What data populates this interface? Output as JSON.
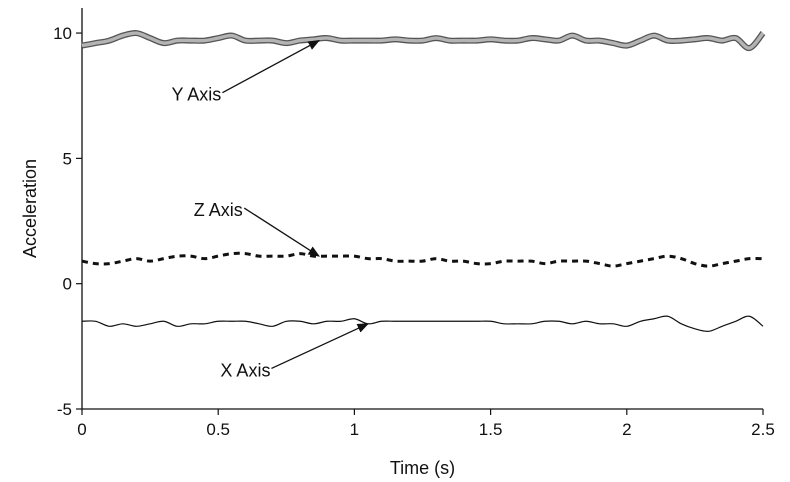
{
  "chart_data": {
    "type": "line",
    "title": "",
    "xlabel": "Time (s)",
    "ylabel": "Acceleration",
    "xlim": [
      0,
      2.5
    ],
    "ylim": [
      -5,
      11
    ],
    "xticks": [
      "0",
      "0.5",
      "1",
      "1.5",
      "2",
      "2.5"
    ],
    "xtick_values": [
      0,
      0.5,
      1,
      1.5,
      2,
      2.5
    ],
    "yticks": [
      "-5",
      "0",
      "5",
      "10"
    ],
    "ytick_values": [
      -5,
      0,
      5,
      10
    ],
    "grid": false,
    "legend": "none",
    "x": [
      0,
      0.05,
      0.1,
      0.15,
      0.2,
      0.25,
      0.3,
      0.35,
      0.4,
      0.45,
      0.5,
      0.55,
      0.6,
      0.65,
      0.7,
      0.75,
      0.8,
      0.85,
      0.9,
      0.95,
      1.0,
      1.05,
      1.1,
      1.15,
      1.2,
      1.25,
      1.3,
      1.35,
      1.4,
      1.45,
      1.5,
      1.55,
      1.6,
      1.65,
      1.7,
      1.75,
      1.8,
      1.85,
      1.9,
      1.95,
      2.0,
      2.05,
      2.1,
      2.15,
      2.2,
      2.25,
      2.3,
      2.35,
      2.4,
      2.45,
      2.5
    ],
    "series": [
      {
        "style": "thick-gray",
        "color": "#8a8a8a",
        "values": [
          9.5,
          9.6,
          9.7,
          9.9,
          10.0,
          9.8,
          9.6,
          9.7,
          9.7,
          9.7,
          9.8,
          9.9,
          9.7,
          9.7,
          9.7,
          9.6,
          9.7,
          9.75,
          9.8,
          9.7,
          9.7,
          9.7,
          9.7,
          9.75,
          9.7,
          9.7,
          9.8,
          9.7,
          9.7,
          9.7,
          9.75,
          9.7,
          9.7,
          9.8,
          9.75,
          9.7,
          9.9,
          9.7,
          9.7,
          9.6,
          9.5,
          9.7,
          9.9,
          9.7,
          9.7,
          9.75,
          9.8,
          9.7,
          9.8,
          9.4,
          10.0
        ]
      },
      {
        "style": "dashed",
        "color": "#111111",
        "values": [
          0.9,
          0.8,
          0.8,
          0.9,
          1.0,
          0.9,
          1.0,
          1.1,
          1.1,
          1.0,
          1.1,
          1.2,
          1.2,
          1.1,
          1.1,
          1.1,
          1.2,
          1.1,
          1.1,
          1.1,
          1.1,
          1.0,
          1.0,
          0.9,
          0.9,
          0.9,
          1.0,
          0.9,
          0.9,
          0.8,
          0.8,
          0.9,
          0.9,
          0.9,
          0.8,
          0.9,
          0.9,
          0.9,
          0.8,
          0.7,
          0.8,
          0.9,
          1.0,
          1.1,
          1.0,
          0.8,
          0.7,
          0.8,
          0.9,
          1.0,
          1.0
        ]
      },
      {
        "style": "thin-solid",
        "color": "#111111",
        "values": [
          -1.5,
          -1.5,
          -1.7,
          -1.6,
          -1.7,
          -1.6,
          -1.5,
          -1.7,
          -1.6,
          -1.6,
          -1.5,
          -1.5,
          -1.5,
          -1.6,
          -1.7,
          -1.5,
          -1.5,
          -1.6,
          -1.5,
          -1.5,
          -1.4,
          -1.6,
          -1.5,
          -1.5,
          -1.5,
          -1.5,
          -1.5,
          -1.5,
          -1.5,
          -1.5,
          -1.5,
          -1.6,
          -1.6,
          -1.6,
          -1.5,
          -1.5,
          -1.6,
          -1.5,
          -1.6,
          -1.6,
          -1.7,
          -1.5,
          -1.4,
          -1.3,
          -1.6,
          -1.8,
          -1.9,
          -1.7,
          -1.5,
          -1.3,
          -1.7
        ]
      }
    ],
    "annotations": [
      {
        "text": "Y Axis",
        "x": 0.42,
        "y": 7.3,
        "target_x": 0.87,
        "target_y": 9.7
      },
      {
        "text": "Z Axis",
        "x": 0.5,
        "y": 2.7,
        "target_x": 0.87,
        "target_y": 1.1
      },
      {
        "text": "X Axis",
        "x": 0.6,
        "y": -3.7,
        "target_x": 1.05,
        "target_y": -1.6
      }
    ]
  }
}
